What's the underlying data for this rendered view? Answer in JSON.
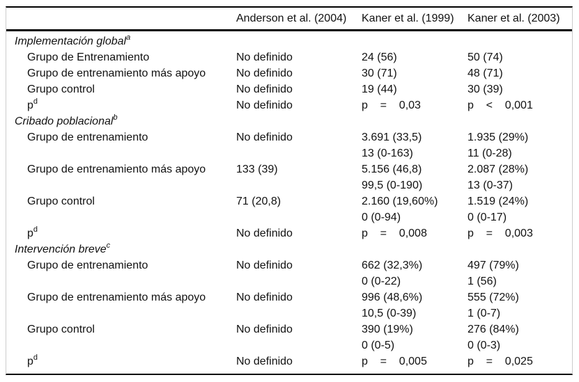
{
  "table": {
    "header": {
      "col1": "",
      "col2": "Anderson et al. (2004)",
      "col3": "Kaner et al. (1999)",
      "col4": "Kaner et al. (2003)"
    },
    "sections": [
      {
        "title": "Implementación global",
        "sup": "a",
        "rows": [
          {
            "label": "Grupo de Entrenamiento",
            "label_sup": "",
            "cells": [
              [
                "No definido"
              ],
              [
                "24 (56)"
              ],
              [
                "50 (74)"
              ]
            ]
          },
          {
            "label": "Grupo de entrenamiento más apoyo",
            "label_sup": "",
            "cells": [
              [
                "No definido"
              ],
              [
                "30 (71)"
              ],
              [
                "48 (71)"
              ]
            ]
          },
          {
            "label": "Grupo control",
            "label_sup": "",
            "cells": [
              [
                "No definido"
              ],
              [
                "19 (44)"
              ],
              [
                "30 (39)"
              ]
            ]
          },
          {
            "label": "p",
            "label_sup": "d",
            "cells": [
              [
                "No definido"
              ],
              [
                "p    =    0,03"
              ],
              [
                "p    <    0,001"
              ]
            ]
          }
        ]
      },
      {
        "title": "Cribado poblacional",
        "sup": "b",
        "rows": [
          {
            "label": "Grupo de entrenamiento",
            "label_sup": "",
            "cells": [
              [
                "No definido"
              ],
              [
                "3.691 (33,5)",
                "13 (0-163)"
              ],
              [
                "1.935 (29%)",
                "11 (0-28)"
              ]
            ]
          },
          {
            "label": "Grupo de entrenamiento más apoyo",
            "label_sup": "",
            "cells": [
              [
                "133 (39)"
              ],
              [
                "5.156 (46,8)",
                "99,5 (0-190)"
              ],
              [
                "2.087 (28%)",
                "13 (0-37)"
              ]
            ]
          },
          {
            "label": "Grupo control",
            "label_sup": "",
            "cells": [
              [
                "71 (20,8)"
              ],
              [
                "2.160 (19,60%)",
                "0 (0-94)"
              ],
              [
                "1.519 (24%)",
                "0 (0-17)"
              ]
            ]
          },
          {
            "label": "p",
            "label_sup": "d",
            "cells": [
              [
                "No definido"
              ],
              [
                "p    =    0,008"
              ],
              [
                "p    =    0,003"
              ]
            ]
          }
        ]
      },
      {
        "title": "Intervención breve",
        "sup": "c",
        "rows": [
          {
            "label": "Grupo de entrenamiento",
            "label_sup": "",
            "cells": [
              [
                "No definido"
              ],
              [
                "662 (32,3%)",
                "0 (0-22)"
              ],
              [
                "497 (79%)",
                "1 (56)"
              ]
            ]
          },
          {
            "label": "Grupo de entrenamiento más apoyo",
            "label_sup": "",
            "cells": [
              [
                "No definido"
              ],
              [
                "996 (48,6%)",
                "10,5 (0-39)"
              ],
              [
                "555 (72%)",
                "1 (0-7)"
              ]
            ]
          },
          {
            "label": "Grupo control",
            "label_sup": "",
            "cells": [
              [
                "No definido"
              ],
              [
                "390 (19%)",
                "0 (0-5)"
              ],
              [
                "276 (84%)",
                "0 (0-3)"
              ]
            ]
          },
          {
            "label": "p",
            "label_sup": "d",
            "cells": [
              [
                "No definido"
              ],
              [
                "p    =    0,005"
              ],
              [
                "p    =    0,025"
              ]
            ]
          }
        ]
      }
    ],
    "colors": {
      "text": "#111111",
      "rule_dark": "#000000",
      "rule_light": "#cccccc"
    }
  }
}
